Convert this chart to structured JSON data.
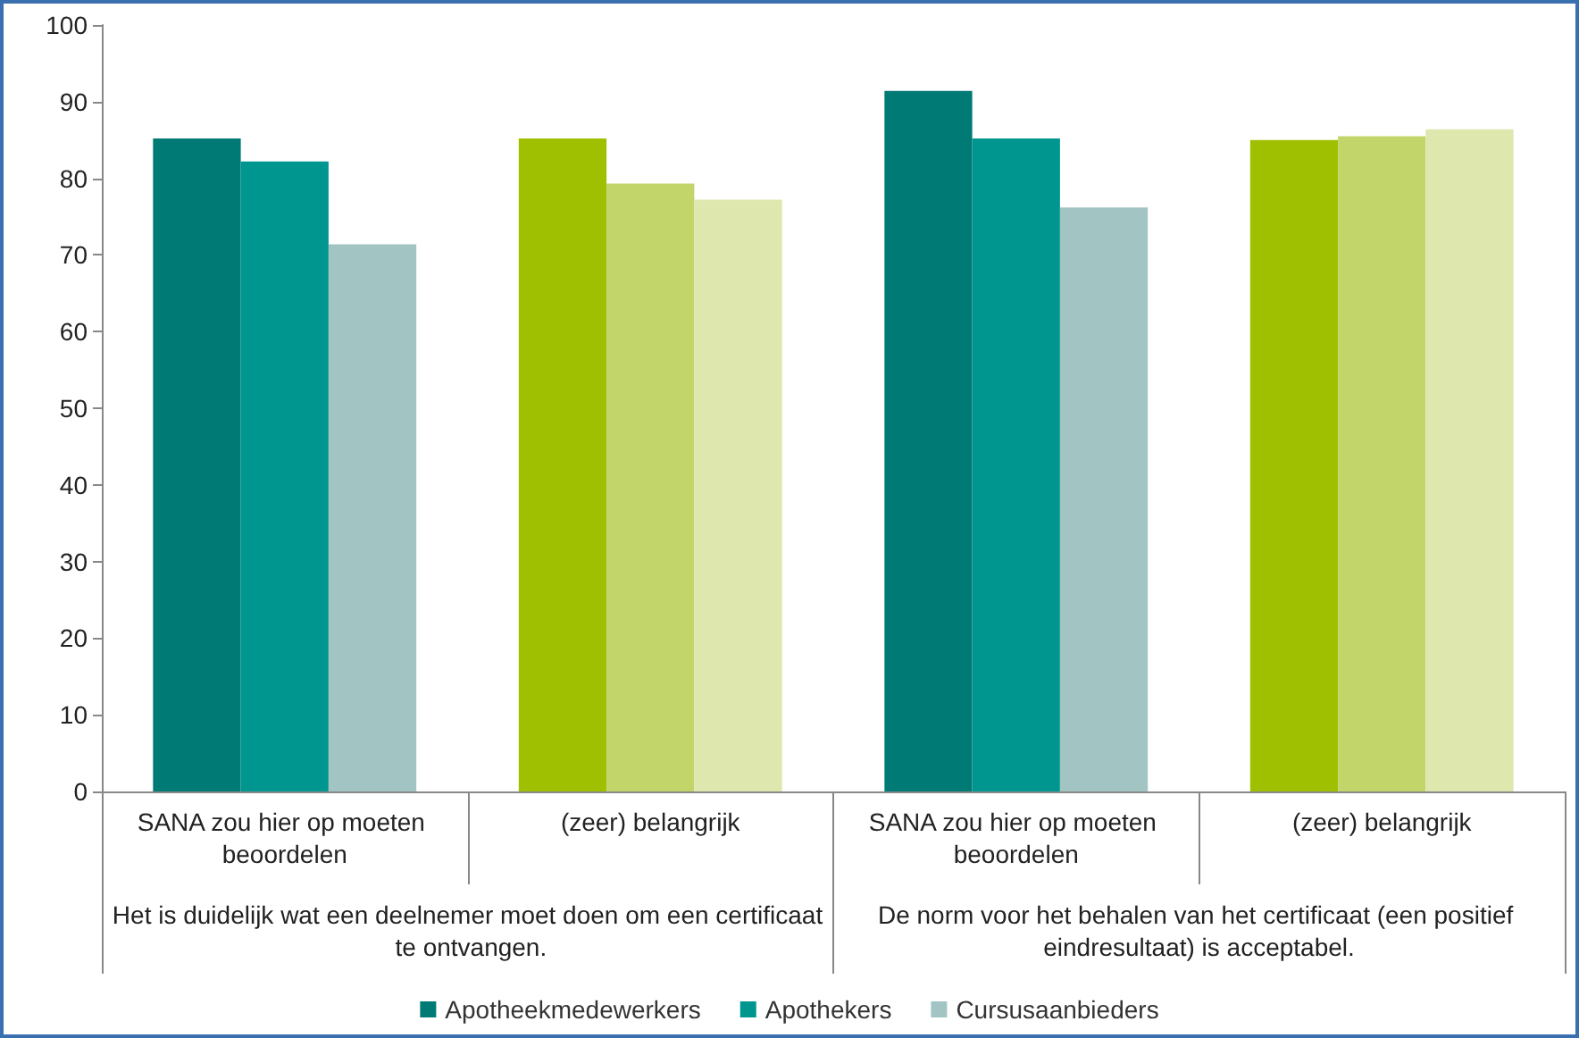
{
  "chart_data": {
    "type": "bar",
    "categories": [
      "SANA zou hier op moeten beoordelen",
      "(zeer) belangrijk",
      "SANA zou hier op moeten beoordelen",
      "(zeer) belangrijk"
    ],
    "annotations": [
      "Het is duidelijk wat een deelnemer moet doen om een certificaat te ontvangen.",
      "De norm voor het behalen van het certificaat (een positief eindresultaat) is acceptabel."
    ],
    "series": [
      {
        "name": "Apotheekmedewerkers",
        "color": "#007a74",
        "colors": [
          "#007a74",
          "#9fc000",
          "#007a74",
          "#9fc000"
        ],
        "values": [
          85.2,
          85.2,
          91.4,
          85.0
        ]
      },
      {
        "name": "Apothekers",
        "color": "#009690",
        "colors": [
          "#009690",
          "#c1d56b",
          "#009690",
          "#c1d56b"
        ],
        "values": [
          82.2,
          79.3,
          85.2,
          85.5
        ]
      },
      {
        "name": "Cursusaanbieders",
        "color": "#a2c4c3",
        "colors": [
          "#a2c4c3",
          "#dde7ae",
          "#a2c4c3",
          "#dde7ae"
        ],
        "values": [
          71.4,
          77.2,
          76.2,
          86.4
        ]
      }
    ],
    "ylim": [
      0,
      100
    ],
    "yticks": [
      0,
      10,
      20,
      30,
      40,
      50,
      60,
      70,
      80,
      90,
      100
    ],
    "grid": false,
    "legend": "bottom"
  }
}
